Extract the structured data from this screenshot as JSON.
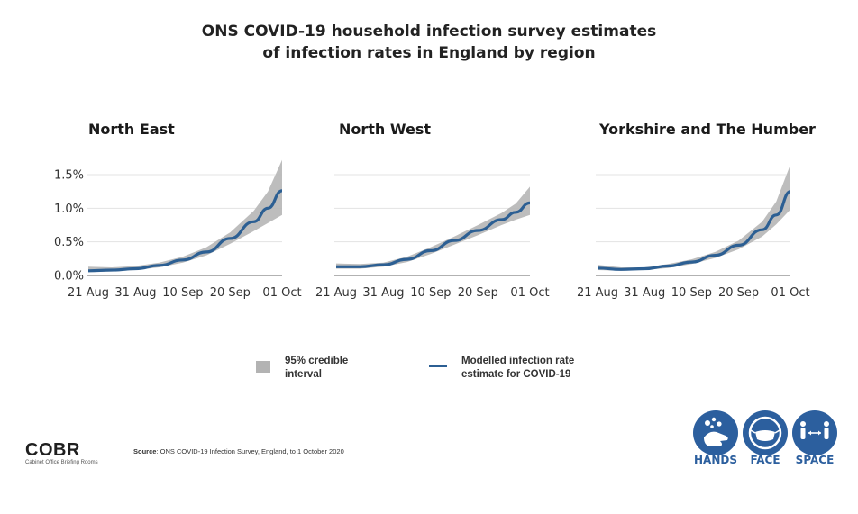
{
  "header": {
    "title_line1": "ONS COVID-19 household infection survey estimates",
    "title_line2": "of infection rates in England by region"
  },
  "chart_data": [
    {
      "type": "line",
      "title": "North East",
      "x": [
        "21 Aug",
        "26 Aug",
        "31 Aug",
        "05 Sep",
        "10 Sep",
        "15 Sep",
        "20 Sep",
        "25 Sep",
        "28 Sep",
        "01 Oct"
      ],
      "xticks": [
        "21 Aug",
        "31 Aug",
        "10 Sep",
        "20 Sep",
        "01 Oct"
      ],
      "yticks": [
        "1.5%",
        "1.0%",
        "0.5%",
        "0.0%"
      ],
      "ylim": [
        0,
        1.6
      ],
      "series": [
        {
          "name": "Modelled infection rate estimate for COVID-19",
          "values": [
            0.07,
            0.08,
            0.1,
            0.15,
            0.23,
            0.35,
            0.55,
            0.8,
            1.0,
            1.26
          ]
        },
        {
          "name": "95% credible interval lower",
          "values": [
            0.05,
            0.06,
            0.08,
            0.12,
            0.19,
            0.3,
            0.47,
            0.66,
            0.78,
            0.9
          ]
        },
        {
          "name": "95% credible interval upper",
          "values": [
            0.13,
            0.12,
            0.14,
            0.19,
            0.28,
            0.42,
            0.64,
            0.96,
            1.25,
            1.72
          ]
        }
      ]
    },
    {
      "type": "line",
      "title": "North West",
      "x": [
        "21 Aug",
        "26 Aug",
        "31 Aug",
        "05 Sep",
        "10 Sep",
        "15 Sep",
        "20 Sep",
        "25 Sep",
        "28 Sep",
        "01 Oct"
      ],
      "xticks": [
        "21 Aug",
        "31 Aug",
        "10 Sep",
        "20 Sep",
        "01 Oct"
      ],
      "yticks": [
        "1.5%",
        "1.0%",
        "0.5%",
        "0.0%"
      ],
      "ylim": [
        0,
        1.6
      ],
      "series": [
        {
          "name": "Modelled infection rate estimate for COVID-19",
          "values": [
            0.13,
            0.13,
            0.16,
            0.24,
            0.37,
            0.52,
            0.67,
            0.83,
            0.94,
            1.08
          ]
        },
        {
          "name": "95% credible interval lower",
          "values": [
            0.1,
            0.1,
            0.13,
            0.2,
            0.32,
            0.46,
            0.6,
            0.75,
            0.83,
            0.9
          ]
        },
        {
          "name": "95% credible interval upper",
          "values": [
            0.18,
            0.17,
            0.19,
            0.28,
            0.42,
            0.58,
            0.75,
            0.93,
            1.07,
            1.32
          ]
        }
      ]
    },
    {
      "type": "line",
      "title": "Yorkshire and The Humber",
      "x": [
        "21 Aug",
        "26 Aug",
        "31 Aug",
        "05 Sep",
        "10 Sep",
        "15 Sep",
        "20 Sep",
        "25 Sep",
        "28 Sep",
        "01 Oct"
      ],
      "xticks": [
        "21 Aug",
        "31 Aug",
        "10 Sep",
        "20 Sep",
        "01 Oct"
      ],
      "yticks": [
        "1.5%",
        "1.0%",
        "0.5%",
        "0.0%"
      ],
      "ylim": [
        0,
        1.6
      ],
      "series": [
        {
          "name": "Modelled infection rate estimate for COVID-19",
          "values": [
            0.11,
            0.09,
            0.1,
            0.14,
            0.2,
            0.3,
            0.45,
            0.68,
            0.9,
            1.25
          ]
        },
        {
          "name": "95% credible interval lower",
          "values": [
            0.08,
            0.07,
            0.08,
            0.11,
            0.17,
            0.26,
            0.39,
            0.58,
            0.76,
            0.98
          ]
        },
        {
          "name": "95% credible interval upper",
          "values": [
            0.16,
            0.12,
            0.12,
            0.17,
            0.24,
            0.35,
            0.52,
            0.8,
            1.1,
            1.65
          ]
        }
      ]
    }
  ],
  "legend": {
    "band_label": "95% credible\ninterval",
    "line_label": "Modelled infection rate\nestimate for COVID-19",
    "band_color": "#b3b3b3",
    "line_color": "#2c5f93"
  },
  "footer": {
    "logo_text": "COBR",
    "logo_subtext": "Cabinet Office Briefing Rooms",
    "source_label": "Source",
    "source_text": ": ONS COVID-19 Infection Survey, England, to 1 October 2020",
    "badges": [
      {
        "label": "HANDS",
        "icon": "hands-washing-icon"
      },
      {
        "label": "FACE",
        "icon": "face-mask-icon"
      },
      {
        "label": "SPACE",
        "icon": "social-distance-icon"
      }
    ],
    "badge_color": "#2c5f9e"
  }
}
